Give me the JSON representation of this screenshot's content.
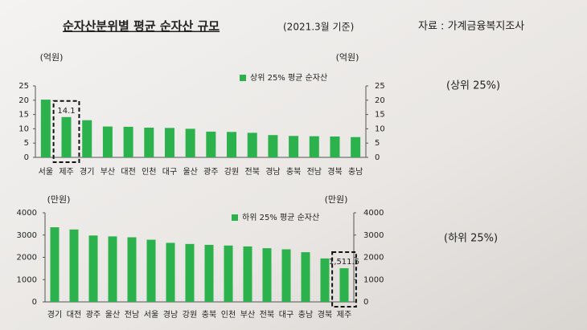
{
  "header": {
    "title": "순자산분위별 평균 순자산 규모",
    "date": "(2021.3월 기준)",
    "source": "자료 : 가계금융복지조사"
  },
  "chart_data": [
    {
      "type": "bar",
      "annotation": "(상위 25%)",
      "y_unit": "(억원)",
      "y2_unit": "(억원)",
      "categories": [
        "서울",
        "제주",
        "경기",
        "부산",
        "대전",
        "인천",
        "대구",
        "울산",
        "광주",
        "강원",
        "전북",
        "경남",
        "충북",
        "전남",
        "경북",
        "충남"
      ],
      "series": [
        {
          "name": "상위 25% 평균 순자산",
          "color": "#2bb24c",
          "values": [
            20.2,
            14.1,
            13.0,
            10.8,
            10.7,
            10.4,
            10.3,
            10.0,
            9.0,
            8.9,
            8.6,
            7.8,
            7.5,
            7.4,
            7.3,
            7.1
          ]
        }
      ],
      "highlight_index": 1,
      "ylim": [
        0,
        25
      ],
      "yticks": [
        0,
        5,
        10,
        15,
        20,
        25
      ],
      "y2lim": [
        0,
        25
      ],
      "y2ticks": [
        0,
        5,
        10,
        15,
        20,
        25
      ]
    },
    {
      "type": "bar",
      "annotation": "(하위 25%)",
      "y_unit": "(만원)",
      "y2_unit": "(만원)",
      "categories": [
        "경기",
        "대전",
        "광주",
        "울산",
        "전남",
        "서울",
        "경남",
        "강원",
        "충북",
        "인천",
        "부산",
        "전북",
        "대구",
        "충남",
        "경북",
        "제주"
      ],
      "series": [
        {
          "name": "하위 25% 평균 순자산",
          "color": "#2bb24c",
          "values": [
            3350,
            3250,
            2980,
            2940,
            2900,
            2790,
            2650,
            2600,
            2560,
            2530,
            2490,
            2410,
            2360,
            2230,
            1950,
            1511.5
          ],
          "value_labels": [
            null,
            null,
            null,
            null,
            null,
            null,
            null,
            null,
            null,
            null,
            null,
            null,
            null,
            null,
            null,
            "1,511.5"
          ]
        }
      ],
      "highlight_index": 15,
      "ylim": [
        0,
        4000
      ],
      "yticks": [
        0,
        1000,
        2000,
        3000,
        4000
      ],
      "y2lim": [
        0,
        4000
      ],
      "y2ticks": [
        0,
        1000,
        2000,
        3000,
        4000
      ]
    }
  ]
}
